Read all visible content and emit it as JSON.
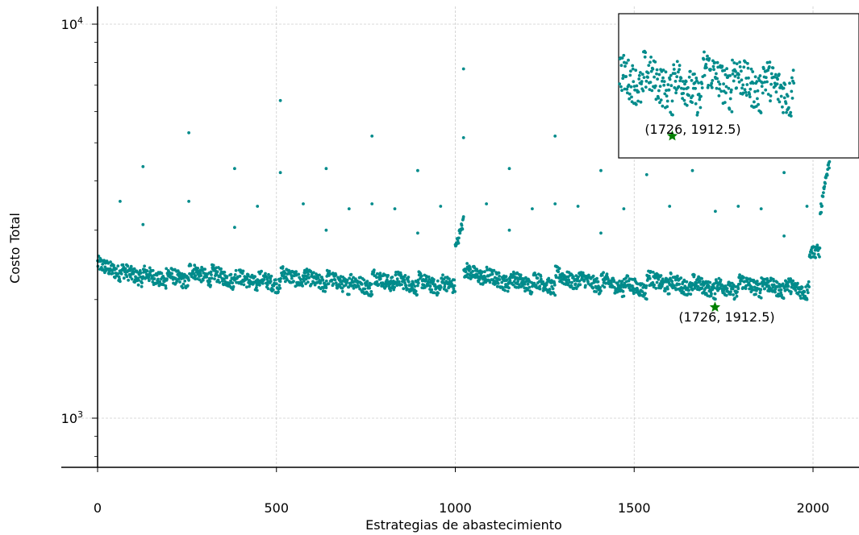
{
  "chart_data": {
    "type": "scatter",
    "title": "",
    "xlabel": "Estrategias de abastecimiento",
    "ylabel": "Costo Total",
    "xlim": [
      -100,
      2130
    ],
    "ylim": [
      700,
      11200
    ],
    "yscale": "log",
    "grid": true,
    "x_ticks": [
      "0",
      "500",
      "1000",
      "1500",
      "2000"
    ],
    "y_ticks": [
      {
        "base": "10",
        "exp": "3"
      },
      {
        "base": "10",
        "exp": "4"
      }
    ],
    "point_color": "#008b8b",
    "n_points": 2048,
    "points_note_values": "Costs mostly between about 1950 and 2600 with a periodic sawtooth pattern every 64 strategies; sparse outliers up to ~7700.",
    "outliers": [
      {
        "x": 63,
        "y": 3550
      },
      {
        "x": 127,
        "y": 4350
      },
      {
        "x": 127,
        "y": 3100
      },
      {
        "x": 255,
        "y": 5300
      },
      {
        "x": 255,
        "y": 3550
      },
      {
        "x": 383,
        "y": 4300
      },
      {
        "x": 383,
        "y": 3050
      },
      {
        "x": 447,
        "y": 3450
      },
      {
        "x": 511,
        "y": 6400
      },
      {
        "x": 511,
        "y": 4200
      },
      {
        "x": 575,
        "y": 3500
      },
      {
        "x": 639,
        "y": 4300
      },
      {
        "x": 639,
        "y": 3000
      },
      {
        "x": 703,
        "y": 3400
      },
      {
        "x": 767,
        "y": 5200
      },
      {
        "x": 767,
        "y": 3500
      },
      {
        "x": 831,
        "y": 3400
      },
      {
        "x": 895,
        "y": 4250
      },
      {
        "x": 895,
        "y": 2950
      },
      {
        "x": 959,
        "y": 3450
      },
      {
        "x": 1023,
        "y": 7700
      },
      {
        "x": 1023,
        "y": 5150
      },
      {
        "x": 1087,
        "y": 3500
      },
      {
        "x": 1151,
        "y": 4300
      },
      {
        "x": 1151,
        "y": 3000
      },
      {
        "x": 1215,
        "y": 3400
      },
      {
        "x": 1279,
        "y": 5200
      },
      {
        "x": 1279,
        "y": 3500
      },
      {
        "x": 1343,
        "y": 3450
      },
      {
        "x": 1407,
        "y": 4250
      },
      {
        "x": 1407,
        "y": 2950
      },
      {
        "x": 1471,
        "y": 3400
      },
      {
        "x": 1535,
        "y": 4150
      },
      {
        "x": 1599,
        "y": 3450
      },
      {
        "x": 1663,
        "y": 4250
      },
      {
        "x": 1727,
        "y": 3350
      },
      {
        "x": 1791,
        "y": 3450
      },
      {
        "x": 1855,
        "y": 3400
      },
      {
        "x": 1919,
        "y": 4200
      },
      {
        "x": 1919,
        "y": 2900
      },
      {
        "x": 1983,
        "y": 3450
      }
    ],
    "highlight": {
      "x": 1726,
      "y": 1912.5,
      "label": "(1726, 1912.5)",
      "color": "#008000",
      "marker": "star"
    },
    "inset": {
      "xlim": [
        1610,
        2130
      ],
      "ylim": [
        1820,
        2520
      ],
      "label": "(1726, 1912.5)"
    }
  }
}
